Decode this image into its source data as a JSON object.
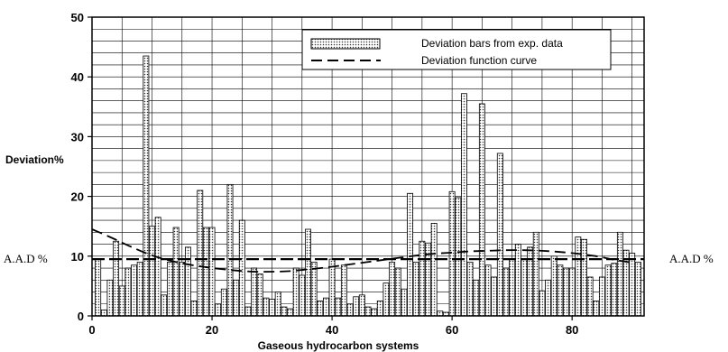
{
  "chart_data": {
    "type": "bar",
    "xlabel": "Gaseous hydrocarbon systems",
    "ylabel": "Deviation%",
    "xlim": [
      0,
      92
    ],
    "ylim": [
      0,
      50
    ],
    "x_ticks": [
      0,
      20,
      40,
      60,
      80
    ],
    "y_ticks": [
      0,
      10,
      20,
      30,
      40,
      50
    ],
    "grid": true,
    "legend_position": "top-right",
    "reference_label_left": "A.A.D %",
    "reference_label_right": "A.A.D %",
    "aad_value": 9.5,
    "series": [
      {
        "name": "Deviation bars from exp. data",
        "type": "bar",
        "x": [
          1,
          2,
          3,
          4,
          5,
          6,
          7,
          8,
          9,
          10,
          11,
          12,
          13,
          14,
          15,
          16,
          17,
          18,
          19,
          20,
          21,
          22,
          23,
          24,
          25,
          26,
          27,
          28,
          29,
          30,
          31,
          32,
          33,
          34,
          35,
          36,
          37,
          38,
          39,
          40,
          41,
          42,
          43,
          44,
          45,
          46,
          47,
          48,
          49,
          50,
          51,
          52,
          53,
          54,
          55,
          56,
          57,
          58,
          59,
          60,
          61,
          62,
          63,
          64,
          65,
          66,
          67,
          68,
          69,
          70,
          71,
          72,
          73,
          74,
          75,
          76,
          77,
          78,
          79,
          80,
          81,
          82,
          83,
          84,
          85,
          86,
          87,
          88,
          89,
          90,
          91
        ],
        "values": [
          9.5,
          1,
          6,
          12.5,
          5,
          8,
          8.5,
          9,
          43.5,
          15,
          16.5,
          3.5,
          9,
          14.8,
          9,
          11.5,
          2.5,
          21,
          14.8,
          14.8,
          2,
          4.5,
          22,
          6,
          16,
          1.5,
          8,
          7,
          3,
          2.8,
          4,
          1.5,
          1.2,
          8,
          6.8,
          14.5,
          9,
          2.5,
          3,
          9.5,
          3,
          8.5,
          2,
          3.2,
          3.5,
          1.5,
          1.2,
          2.5,
          5.5,
          9,
          8,
          4.5,
          20.5,
          9,
          12.5,
          12.2,
          15.5,
          0.8,
          0.6,
          20.8,
          19.8,
          37.2,
          9,
          6,
          35.5,
          8.5,
          6.5,
          27.2,
          8,
          9.5,
          12,
          9.5,
          11.5,
          14,
          4.2,
          6,
          10,
          8.5,
          8,
          8,
          13.2,
          12.8,
          6.5,
          2.5,
          6.5,
          8.5,
          8.8,
          14,
          11,
          10.5,
          9
        ]
      },
      {
        "name": "Deviation function curve",
        "type": "line",
        "style": "dashed",
        "x": [
          0,
          3,
          6,
          9,
          12,
          15,
          18,
          21,
          24,
          27,
          30,
          33,
          36,
          39,
          42,
          45,
          48,
          51,
          54,
          57,
          60,
          63,
          66,
          69,
          72,
          75,
          78,
          81,
          84,
          87,
          90
        ],
        "values": [
          14.5,
          13.2,
          11.8,
          10.5,
          9.5,
          8.8,
          8.3,
          7.9,
          7.6,
          7.4,
          7.4,
          7.5,
          7.8,
          8.1,
          8.5,
          8.9,
          9.3,
          9.7,
          10.1,
          10.4,
          10.6,
          10.8,
          10.9,
          11,
          11,
          10.9,
          10.7,
          10.4,
          10,
          9.4,
          8.9
        ]
      }
    ]
  }
}
